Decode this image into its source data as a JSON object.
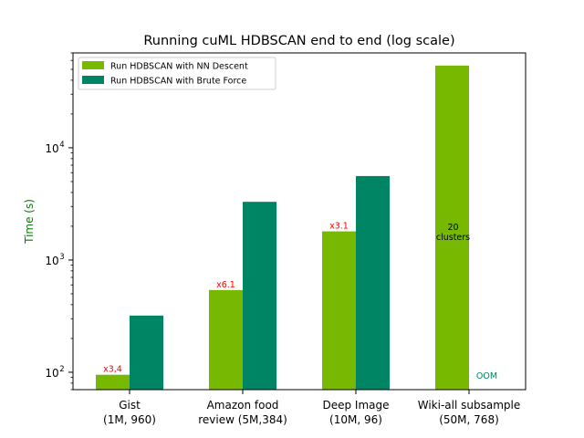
{
  "chart_data": {
    "type": "bar",
    "title": "Running cuML HDBSCAN end to end (log scale)",
    "xlabel": "",
    "ylabel": "Time (s)",
    "yscale": "log",
    "ylim": [
      70,
      70000
    ],
    "yticks": [
      {
        "value": 100,
        "base": "10",
        "exp": "2"
      },
      {
        "value": 1000,
        "base": "10",
        "exp": "3"
      },
      {
        "value": 10000,
        "base": "10",
        "exp": "4"
      }
    ],
    "categories": [
      [
        "Gist",
        "(1M, 960)"
      ],
      [
        "Amazon food",
        "review (5M,384)"
      ],
      [
        "Deep Image",
        "(10M, 96)"
      ],
      [
        "Wiki-all subsample",
        "(50M, 768)"
      ]
    ],
    "series": [
      {
        "name": "Run HDBSCAN with NN Descent",
        "color": "#76b900",
        "values": [
          95,
          540,
          1800,
          54000
        ]
      },
      {
        "name": "Run HDBSCAN with Brute Force",
        "color": "#008564",
        "values": [
          320,
          3300,
          5600,
          null
        ]
      }
    ],
    "legend": "top-left",
    "grid": false,
    "annotations": {
      "speedups": [
        "x3,4",
        "x6.1",
        "x3.1"
      ],
      "speedup_color": "#ff0000",
      "clusters_line1": "20",
      "clusters_line2": "clusters",
      "oom": "OOM",
      "oom_color": "#008564",
      "ylabel_color": "#008000"
    }
  }
}
